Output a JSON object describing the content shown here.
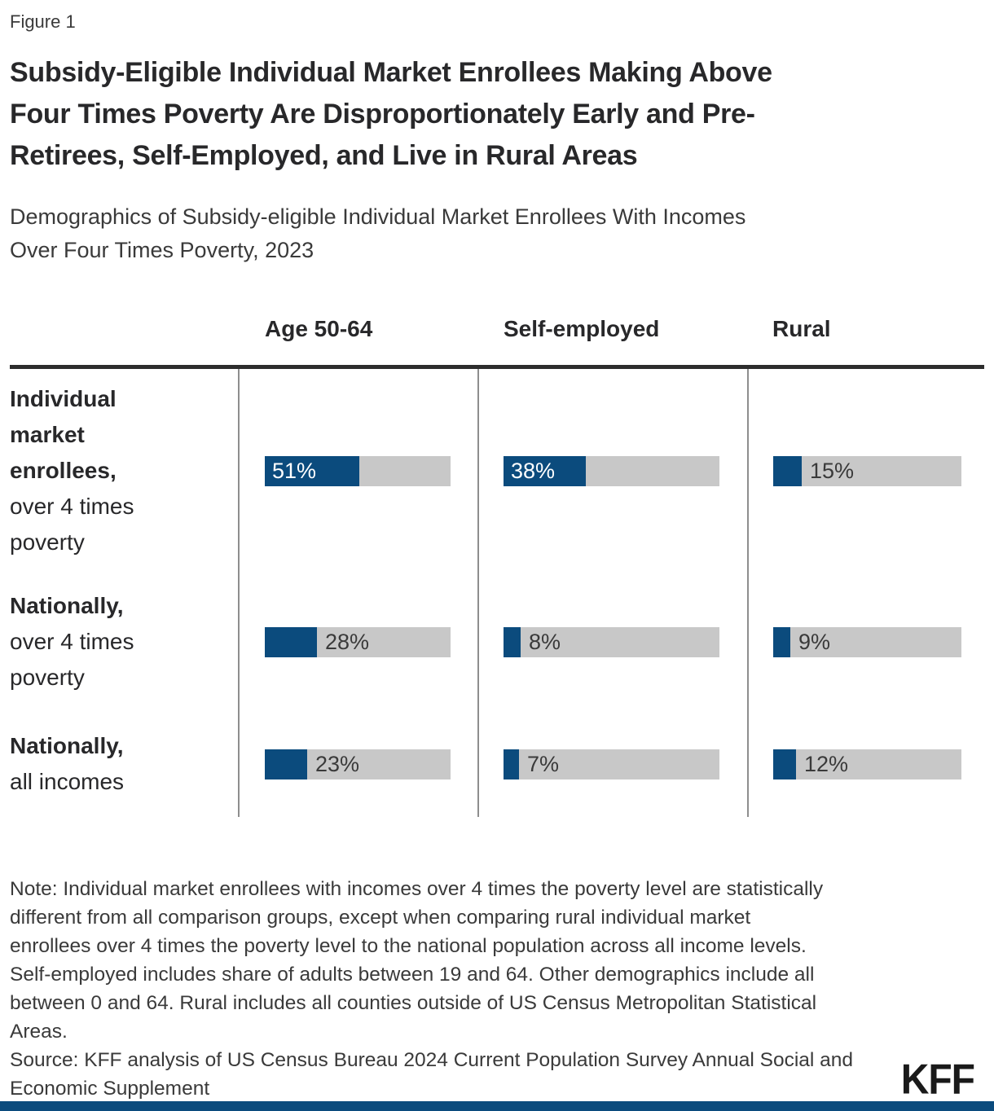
{
  "figure_label": "Figure 1",
  "title_lines": [
    "Subsidy-Eligible Individual Market Enrollees Making Above",
    "Four Times Poverty Are Disproportionately Early and Pre-",
    "Retirees, Self-Employed, and Live in Rural Areas"
  ],
  "subtitle_lines": [
    "Demographics of Subsidy-eligible Individual Market Enrollees With Incomes",
    "Over Four Times Poverty, 2023"
  ],
  "chart_data": {
    "type": "bar",
    "unit": "%",
    "xlim": [
      0,
      100
    ],
    "orientation": "horizontal",
    "columns": [
      "Age 50-64",
      "Self-employed",
      "Rural"
    ],
    "rows": [
      {
        "label": "Individual market enrollees, over 4 times poverty",
        "label_bold_lines": [
          "Individual",
          "market",
          "enrollees,"
        ],
        "label_rest_lines": [
          "over 4 times",
          "poverty"
        ],
        "values": [
          51,
          38,
          15
        ]
      },
      {
        "label": "Nationally, over 4 times poverty",
        "label_bold_lines": [
          "Nationally,"
        ],
        "label_rest_lines": [
          "over 4 times",
          "poverty"
        ],
        "values": [
          28,
          8,
          9
        ]
      },
      {
        "label": "Nationally, all incomes",
        "label_bold_lines": [
          "Nationally,"
        ],
        "label_rest_lines": [
          "all incomes"
        ],
        "values": [
          23,
          7,
          12
        ]
      }
    ]
  },
  "note_lines": [
    "Note: Individual market enrollees with incomes over 4 times the poverty level are statistically",
    "different from all comparison groups, except when comparing rural individual market",
    "enrollees over 4 times the poverty level to the national population across all income levels.",
    "Self-employed includes share of adults between 19 and 64. Other demographics include all",
    "between 0 and 64. Rural includes all counties outside of US Census Metropolitan Statistical",
    "Areas."
  ],
  "source_lines": [
    "Source: KFF analysis of US Census Bureau 2024 Current Population Survey Annual Social and",
    "Economic Supplement"
  ],
  "logo_text": "KFF",
  "colors": {
    "bar_fill": "#0b4b7d",
    "bar_track": "#c8c8c8",
    "header_rule": "#2d2d2d",
    "column_divider": "#8e8e8e",
    "footer_band": "#0b4b7d",
    "title_text": "#28282a",
    "body_text": "#3a3a3a",
    "inside_label_text": "#ffffff"
  }
}
